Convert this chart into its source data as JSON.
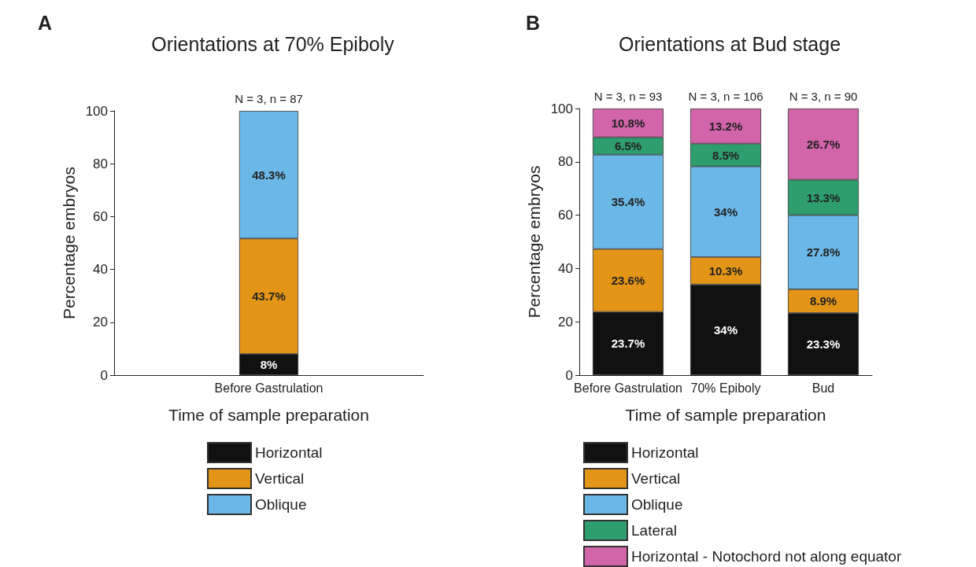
{
  "chart_data": [
    {
      "type": "bar",
      "title": "Orientations at 70% Epiboly",
      "xlabel": "Time of sample preparation",
      "ylabel": "Percentage embryos",
      "categories": [
        "Before Gastrulation"
      ],
      "stacked": true,
      "ylim": [
        0,
        100
      ],
      "yticks": [
        0,
        20,
        40,
        60,
        80,
        100
      ],
      "grid": false,
      "legend": "bottom",
      "annotations": [
        "A",
        {
          "text": "N = 3, n = 87",
          "x": "Before Gastrulation",
          "y": 100
        }
      ],
      "series": [
        {
          "name": "Horizontal",
          "color": "#111111",
          "values": [
            8
          ],
          "value_labels": [
            "8%"
          ]
        },
        {
          "name": "Vertical",
          "color": "#e39517",
          "values": [
            43.7
          ],
          "value_labels": [
            "43.7%"
          ]
        },
        {
          "name": "Oblique",
          "color": "#6bb8e8",
          "values": [
            48.3
          ],
          "value_labels": [
            "48.3%"
          ]
        }
      ]
    },
    {
      "type": "bar",
      "title": "Orientations at Bud stage",
      "xlabel": "Time of sample preparation",
      "ylabel": "Percentage embryos",
      "categories": [
        "Before Gastrulation",
        "70% Epiboly",
        "Bud"
      ],
      "stacked": true,
      "ylim": [
        0,
        100
      ],
      "yticks": [
        0,
        20,
        40,
        60,
        80,
        100
      ],
      "grid": false,
      "legend": "bottom",
      "annotations": [
        "B",
        {
          "text": "N = 3, n = 93",
          "x": "Before Gastrulation",
          "y": 100
        },
        {
          "text": "N = 3, n = 106",
          "x": "70% Epiboly",
          "y": 100
        },
        {
          "text": "N = 3, n = 90",
          "x": "Bud",
          "y": 100
        }
      ],
      "series": [
        {
          "name": "Horizontal",
          "color": "#111111",
          "values": [
            23.7,
            34,
            23.3
          ],
          "value_labels": [
            "23.7%",
            "34%",
            "23.3%"
          ]
        },
        {
          "name": "Vertical",
          "color": "#e39517",
          "values": [
            23.6,
            10.3,
            8.9
          ],
          "value_labels": [
            "23.6%",
            "10.3%",
            "8.9%"
          ]
        },
        {
          "name": "Oblique",
          "color": "#6bb8e8",
          "values": [
            35.4,
            34,
            27.8
          ],
          "value_labels": [
            "35.4%",
            "34%",
            "27.8%"
          ]
        },
        {
          "name": "Lateral",
          "color": "#2e9e6e",
          "values": [
            6.5,
            8.5,
            13.3
          ],
          "value_labels": [
            "6.5%",
            "8.5%",
            "13.3%"
          ]
        },
        {
          "name": "Horizontal - Notochord not along equator",
          "color": "#d264aa",
          "values": [
            10.8,
            13.2,
            26.7
          ],
          "value_labels": [
            "10.8%",
            "13.2%",
            "26.7%"
          ]
        }
      ]
    }
  ]
}
